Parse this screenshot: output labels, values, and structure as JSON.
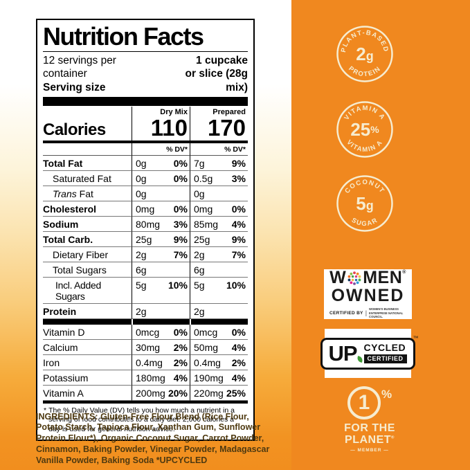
{
  "colors": {
    "background_orange_panel": "#F0881F",
    "background_gradient_top": "#FFFFFF",
    "background_gradient_bottom": "#F18E1E",
    "badge_cream": "#F6ECD0",
    "label_ink": "#000000",
    "ingredients_text": "#4E3910",
    "upcycled_leaf_green": "#3F9C35",
    "women_owned_dots": [
      "#E53E51",
      "#F08A20",
      "#F2C14E",
      "#4CAF50",
      "#2D9CDB",
      "#7B4FA0",
      "#E91E8C",
      "#11355F",
      "#F26D21",
      "#8BC34A",
      "#D63A86",
      "#2E6FB5",
      "#F4B63F",
      "#47A04B"
    ]
  },
  "nutrition_label": {
    "title": "Nutrition Facts",
    "servings_line": "12 servings per container",
    "serving_size_label": "Serving size",
    "serving_size_value_line1": "1 cupcake",
    "serving_size_value_line2": "or slice (28g mix)",
    "columns": {
      "col1": "Dry Mix",
      "col2": "Prepared"
    },
    "calories_label": "Calories",
    "calories": {
      "dry_mix": "110",
      "prepared": "170"
    },
    "dv_header": "% DV*",
    "rows": [
      {
        "name": "Total Fat",
        "bold": true,
        "indent": 0,
        "c1_amount": "0g",
        "c1_dv": "0%",
        "c2_amount": "7g",
        "c2_dv": "9%"
      },
      {
        "name": "Saturated Fat",
        "bold": false,
        "indent": 1,
        "c1_amount": "0g",
        "c1_dv": "0%",
        "c2_amount": "0.5g",
        "c2_dv": "3%"
      },
      {
        "name": "Trans Fat",
        "bold": false,
        "indent": 1,
        "italic_first": true,
        "c1_amount": "0g",
        "c1_dv": "",
        "c2_amount": "0g",
        "c2_dv": ""
      },
      {
        "name": "Cholesterol",
        "bold": true,
        "indent": 0,
        "c1_amount": "0mg",
        "c1_dv": "0%",
        "c2_amount": "0mg",
        "c2_dv": "0%"
      },
      {
        "name": "Sodium",
        "bold": true,
        "indent": 0,
        "c1_amount": "80mg",
        "c1_dv": "3%",
        "c2_amount": "85mg",
        "c2_dv": "4%"
      },
      {
        "name": "Total Carb.",
        "bold": true,
        "indent": 0,
        "c1_amount": "25g",
        "c1_dv": "9%",
        "c2_amount": "25g",
        "c2_dv": "9%"
      },
      {
        "name": "Dietary Fiber",
        "bold": false,
        "indent": 1,
        "c1_amount": "2g",
        "c1_dv": "7%",
        "c2_amount": "2g",
        "c2_dv": "7%"
      },
      {
        "name": "Total Sugars",
        "bold": false,
        "indent": 1,
        "c1_amount": "6g",
        "c1_dv": "",
        "c2_amount": "6g",
        "c2_dv": ""
      },
      {
        "name": "Incl. Added Sugars",
        "bold": false,
        "indent": 2,
        "c1_amount": "5g",
        "c1_dv": "10%",
        "c2_amount": "5g",
        "c2_dv": "10%"
      },
      {
        "name": "Protein",
        "bold": true,
        "indent": 0,
        "bar_after": true,
        "c1_amount": "2g",
        "c1_dv": "",
        "c2_amount": "2g",
        "c2_dv": ""
      },
      {
        "name": "Vitamin D",
        "bold": false,
        "indent": 0,
        "c1_amount": "0mcg",
        "c1_dv": "0%",
        "c2_amount": "0mcg",
        "c2_dv": "0%"
      },
      {
        "name": "Calcium",
        "bold": false,
        "indent": 0,
        "c1_amount": "30mg",
        "c1_dv": "2%",
        "c2_amount": "50mg",
        "c2_dv": "4%"
      },
      {
        "name": "Iron",
        "bold": false,
        "indent": 0,
        "c1_amount": "0.4mg",
        "c1_dv": "2%",
        "c2_amount": "0.4mg",
        "c2_dv": "2%"
      },
      {
        "name": "Potassium",
        "bold": false,
        "indent": 0,
        "c1_amount": "180mg",
        "c1_dv": "4%",
        "c2_amount": "190mg",
        "c2_dv": "4%"
      },
      {
        "name": "Vitamin A",
        "bold": false,
        "indent": 0,
        "c1_amount": "200mg",
        "c1_dv": "20%",
        "c2_amount": "220mg",
        "c2_dv": "25%"
      }
    ],
    "footnote_mark": "*",
    "footnote": "The % Daily Value (DV) tells you how much a nutrient in a serving of food contributes to a daily diet. 2,000 calories a day is used for general nutrition advice."
  },
  "ingredients": {
    "label": "INGREDIENTS:",
    "text": "Gluten-Free Flour Blend (Rice Flour, Potato Starch, Tapioca Flour, Xanthan Gum, Sunflower Protein Flour*), Organic Coconut Sugar, Carrot Powder, Cinnamon, Baking Powder, Vinegar Powder, Madagascar Vanilla Powder, Baking Soda",
    "suffix": "*UPCYCLED"
  },
  "badges": {
    "plant_based": {
      "arc_top": "PLANT-BASED",
      "value": "2",
      "unit": "g",
      "arc_bottom": "PROTEIN"
    },
    "vitamin_a": {
      "arc_top": "VITAMIN A",
      "value": "25",
      "unit": "%",
      "arc_bottom": "VITAMIN A"
    },
    "coconut_sugar": {
      "arc_top": "COCONUT",
      "value": "5",
      "unit": "g",
      "arc_bottom": "SUGAR"
    },
    "women_owned": {
      "word_part1": "W",
      "word_part2": "MEN",
      "reg": "®",
      "word2": "OWNED",
      "certified_by": "CERTIFIED BY",
      "divider": "|",
      "org": "WOMEN'S BUSINESS ENTERPRISE NATIONAL COUNCIL."
    },
    "upcycled": {
      "up": "UP",
      "cycled": "CYCLED",
      "certified": "CERTIFIED",
      "tm": "™"
    },
    "one_percent": {
      "number": "1",
      "percent": "%",
      "line1": "FOR THE",
      "line2": "PLANET",
      "reg": "®",
      "member": "— MEMBER —"
    }
  }
}
